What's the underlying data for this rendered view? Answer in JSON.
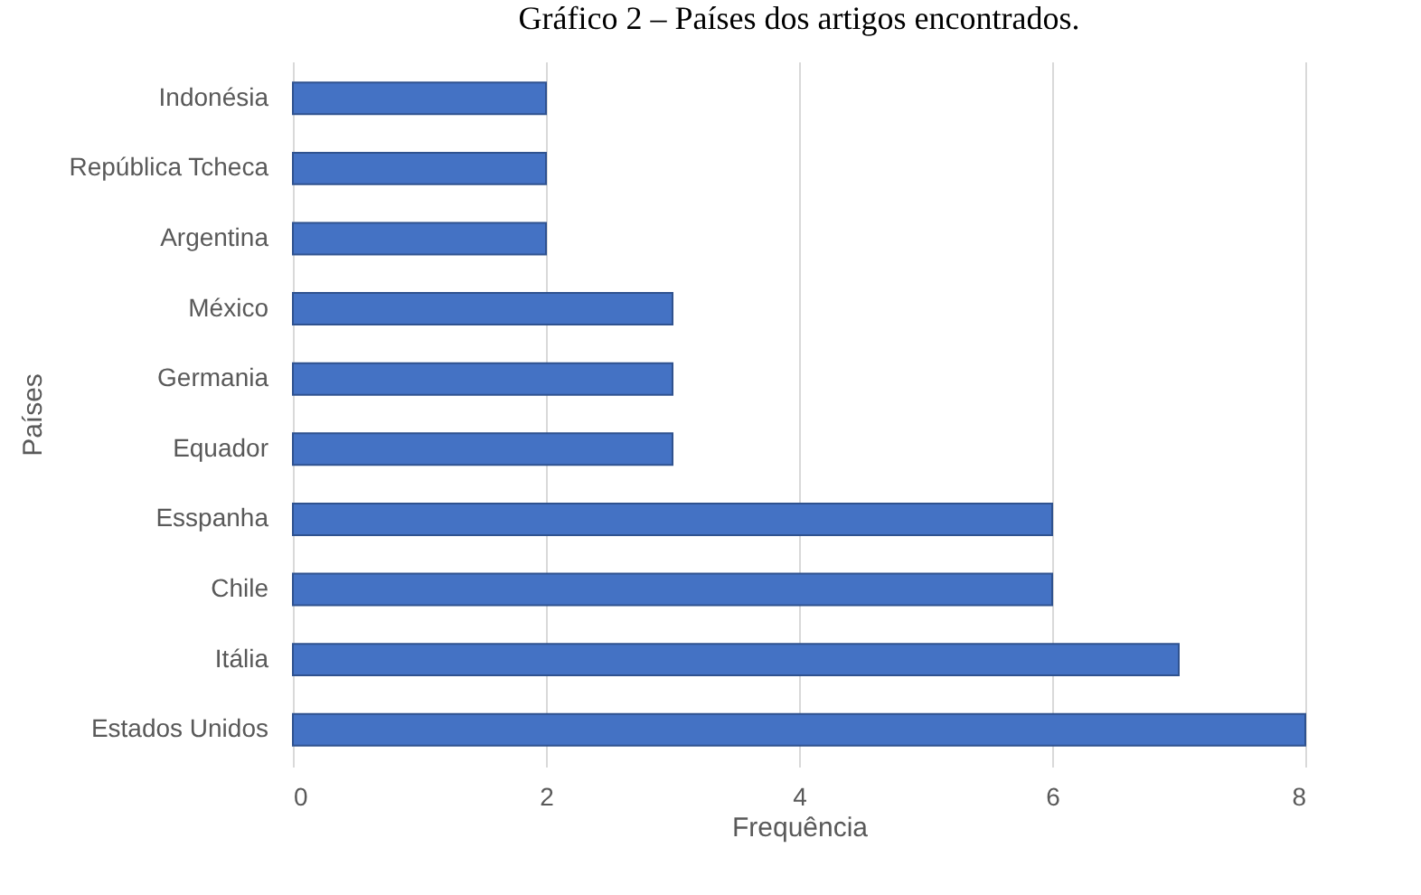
{
  "chart_data": {
    "type": "bar",
    "orientation": "horizontal",
    "title": "Gráfico 2 – Países dos artigos encontrados.",
    "xlabel": "Frequência",
    "ylabel": "Países",
    "categories": [
      "Indonésia",
      "República Tcheca",
      "Argentina",
      "México",
      "Germania",
      "Equador",
      "Esspanha",
      "Chile",
      "Itália",
      "Estados Unidos"
    ],
    "values": [
      2,
      2,
      2,
      3,
      3,
      3,
      6,
      6,
      7,
      8
    ],
    "color": "#4472c4",
    "xlim": [
      0,
      8
    ],
    "xticks": [
      0,
      2,
      4,
      6,
      8
    ],
    "grid": "x"
  }
}
